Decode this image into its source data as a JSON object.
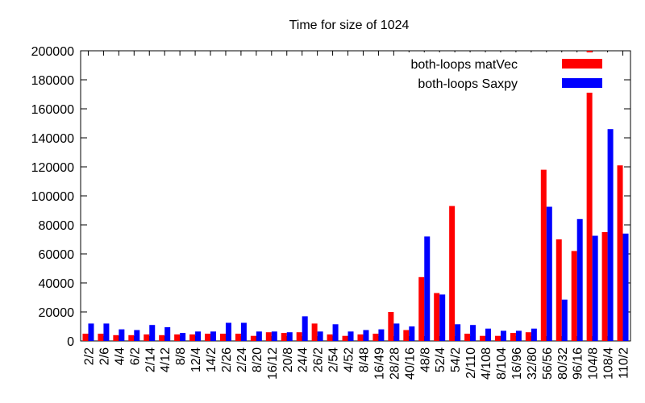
{
  "chart_data": {
    "type": "bar",
    "title": "Time for size of 1024",
    "categories": [
      "2/2",
      "2/6",
      "4/4",
      "6/2",
      "2/14",
      "4/12",
      "8/8",
      "12/4",
      "14/2",
      "2/26",
      "2/24",
      "8/20",
      "16/12",
      "20/8",
      "24/4",
      "26/2",
      "2/54",
      "4/52",
      "8/48",
      "16/49",
      "28/28",
      "40/16",
      "48/8",
      "52/4",
      "54/2",
      "2/110",
      "4/108",
      "8/104",
      "16/96",
      "32/80",
      "56/56",
      "80/32",
      "96/16",
      "104/8",
      "108/4",
      "110/2"
    ],
    "series": [
      {
        "name": "both-loops matVec",
        "color": "#ff0000",
        "values": [
          5000,
          5000,
          4000,
          4000,
          4500,
          4000,
          4500,
          4500,
          5000,
          5000,
          5000,
          3500,
          6000,
          5500,
          6000,
          12000,
          4500,
          3500,
          4500,
          5000,
          20000,
          7500,
          44000,
          33000,
          93000,
          5000,
          3500,
          3500,
          5500,
          6000,
          118000,
          70000,
          62000,
          200000,
          75000,
          121000
        ]
      },
      {
        "name": "both-loops Saxpy",
        "color": "#0000ff",
        "values": [
          12000,
          12000,
          8000,
          7500,
          11000,
          9500,
          5500,
          6500,
          6500,
          12500,
          12500,
          6500,
          6500,
          6000,
          17000,
          6500,
          11500,
          6500,
          7500,
          8000,
          12000,
          10000,
          72000,
          32000,
          11500,
          11000,
          8500,
          7000,
          7000,
          8500,
          92500,
          28500,
          84000,
          72500,
          146000,
          74000
        ]
      }
    ],
    "ylim": [
      0,
      200000
    ],
    "yticks": [
      0,
      20000,
      40000,
      60000,
      80000,
      100000,
      120000,
      140000,
      160000,
      180000,
      200000
    ],
    "legend": "top-right",
    "grid": false
  }
}
